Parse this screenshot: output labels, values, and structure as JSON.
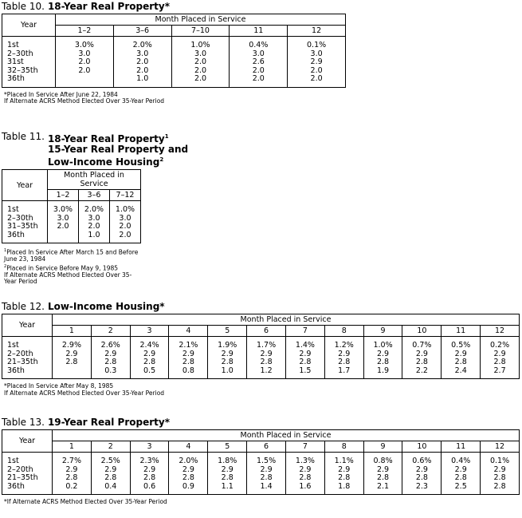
{
  "tables": [
    {
      "label": "Table 10.",
      "title": [
        "18-Year Real Property*"
      ],
      "year_header": "Year",
      "group_header": "Month Placed in Service",
      "columns": [
        "1–2",
        "3–6",
        "7–10",
        "11",
        "12"
      ],
      "rows": [
        {
          "year": "1st",
          "values": [
            "3.0%",
            "2.0%",
            "1.0%",
            "0.4%",
            "0.1%"
          ]
        },
        {
          "year": "2–30th",
          "values": [
            "3.0",
            "3.0",
            "3.0",
            "3.0",
            "3.0"
          ]
        },
        {
          "year": "31st",
          "values": [
            "2.0",
            "2.0",
            "2.0",
            "2.6",
            "2.9"
          ]
        },
        {
          "year": "32–35th",
          "values": [
            "2.0",
            "2.0",
            "2.0",
            "2.0",
            "2.0"
          ]
        },
        {
          "year": "36th",
          "values": [
            null,
            "1.0",
            "2.0",
            "2.0",
            "2.0"
          ]
        }
      ],
      "footnotes": [
        {
          "text": "*Placed In Service After June 22, 1984"
        },
        {
          "text": "If Alternate ACRS Method Elected Over 35-Year Period"
        }
      ]
    },
    {
      "label": "Table 11.",
      "title": [
        "18-Year Real Property",
        "15-Year Real Property and",
        "Low-Income Housing"
      ],
      "title_sups": [
        "1",
        null,
        "2"
      ],
      "year_header": "Year",
      "group_header": "Month Placed in Service",
      "columns": [
        "1–2",
        "3–6",
        "7–12"
      ],
      "rows": [
        {
          "year": "1st",
          "values": [
            "3.0%",
            "2.0%",
            "1.0%"
          ]
        },
        {
          "year": "2–30th",
          "values": [
            "3.0",
            "3.0",
            "3.0"
          ]
        },
        {
          "year": "31–35th",
          "values": [
            "2.0",
            "2.0",
            "2.0"
          ]
        },
        {
          "year": "36th",
          "values": [
            null,
            "1.0",
            "2.0"
          ]
        }
      ],
      "footnotes": [
        {
          "sup": "1",
          "text": "Placed In Service After March 15 and Before June 23, 1984"
        },
        {
          "sup": "2",
          "text": "Placed in Service Before May 9, 1985"
        },
        {
          "text": "If Alternate ACRS Method Elected Over 35-Year Period"
        }
      ]
    },
    {
      "label": "Table 12.",
      "title": [
        "Low-Income Housing*"
      ],
      "year_header": "Year",
      "group_header": "Month Placed in Service",
      "columns": [
        "1",
        "2",
        "3",
        "4",
        "5",
        "6",
        "7",
        "8",
        "9",
        "10",
        "11",
        "12"
      ],
      "rows": [
        {
          "year": "1st",
          "values": [
            "2.9%",
            "2.6%",
            "2.4%",
            "2.1%",
            "1.9%",
            "1.7%",
            "1.4%",
            "1.2%",
            "1.0%",
            "0.7%",
            "0.5%",
            "0.2%"
          ]
        },
        {
          "year": "2–20th",
          "values": [
            "2.9",
            "2.9",
            "2.9",
            "2.9",
            "2.9",
            "2.9",
            "2.9",
            "2.9",
            "2.9",
            "2.9",
            "2.9",
            "2.9"
          ]
        },
        {
          "year": "21–35th",
          "values": [
            "2.8",
            "2.8",
            "2.8",
            "2.8",
            "2.8",
            "2.8",
            "2.8",
            "2.8",
            "2.8",
            "2.8",
            "2.8",
            "2.8"
          ]
        },
        {
          "year": "36th",
          "values": [
            null,
            "0.3",
            "0.5",
            "0.8",
            "1.0",
            "1.2",
            "1.5",
            "1.7",
            "1.9",
            "2.2",
            "2.4",
            "2.7"
          ]
        }
      ],
      "footnotes": [
        {
          "text": "*Placed In Service After May 8, 1985"
        },
        {
          "text": "If Alternate ACRS Method Elected Over 35-Year Period"
        }
      ]
    },
    {
      "label": "Table 13.",
      "title": [
        "19-Year Real Property*"
      ],
      "year_header": "Year",
      "group_header": "Month Placed in Service",
      "columns": [
        "1",
        "2",
        "3",
        "4",
        "5",
        "6",
        "7",
        "8",
        "9",
        "10",
        "11",
        "12"
      ],
      "rows": [
        {
          "year": "1st",
          "values": [
            "2.7%",
            "2.5%",
            "2.3%",
            "2.0%",
            "1.8%",
            "1.5%",
            "1.3%",
            "1.1%",
            "0.8%",
            "0.6%",
            "0.4%",
            "0.1%"
          ]
        },
        {
          "year": "2–20th",
          "values": [
            "2.9",
            "2.9",
            "2.9",
            "2.9",
            "2.9",
            "2.9",
            "2.9",
            "2.9",
            "2.9",
            "2.9",
            "2.9",
            "2.9"
          ]
        },
        {
          "year": "21–35th",
          "values": [
            "2.8",
            "2.8",
            "2.8",
            "2.8",
            "2.8",
            "2.8",
            "2.8",
            "2.8",
            "2.8",
            "2.8",
            "2.8",
            "2.8"
          ]
        },
        {
          "year": "36th",
          "values": [
            "0.2",
            "0.4",
            "0.6",
            "0.9",
            "1.1",
            "1.4",
            "1.6",
            "1.8",
            "2.1",
            "2.3",
            "2.5",
            "2.8"
          ]
        }
      ],
      "footnotes": [
        {
          "text": "*If Alternate ACRS Method Elected Over 35-Year Period"
        }
      ]
    }
  ]
}
